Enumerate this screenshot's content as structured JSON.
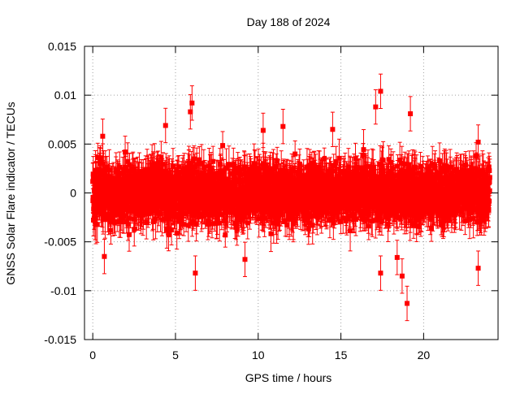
{
  "chart_data": {
    "type": "scatter",
    "title": "Day 188 of 2024",
    "xlabel": "GPS time / hours",
    "ylabel": "GNSS Solar Flare indicator / TECUs",
    "xlim": [
      -0.5,
      24.5
    ],
    "ylim": [
      -0.015,
      0.015
    ],
    "x_ticks": [
      0,
      5,
      10,
      15,
      20
    ],
    "x_tick_labels": [
      "0",
      "5",
      "10",
      "15",
      "20"
    ],
    "y_ticks": [
      -0.015,
      -0.01,
      -0.005,
      0,
      0.005,
      0.01,
      0.015
    ],
    "y_tick_labels": [
      "-0.015",
      "-0.01",
      "-0.005",
      "0",
      "0.005",
      "0.01",
      "0.015"
    ],
    "grid": true,
    "legend": "none",
    "series": [
      {
        "color": "#ff0000",
        "marker": "square",
        "error_bars": true,
        "x_range": [
          0,
          24
        ],
        "n_points": 2880,
        "typical_spread": 0.003,
        "typical_error": 0.0016,
        "notable_points": [
          {
            "x": 0.6,
            "y": 0.0058
          },
          {
            "x": 0.7,
            "y": -0.0065
          },
          {
            "x": 4.4,
            "y": 0.0069
          },
          {
            "x": 5.9,
            "y": 0.0083
          },
          {
            "x": 6.0,
            "y": 0.0092
          },
          {
            "x": 6.2,
            "y": -0.0082
          },
          {
            "x": 9.2,
            "y": -0.0068
          },
          {
            "x": 10.3,
            "y": 0.0064
          },
          {
            "x": 11.5,
            "y": 0.0068
          },
          {
            "x": 14.5,
            "y": 0.0065
          },
          {
            "x": 17.1,
            "y": 0.0088
          },
          {
            "x": 17.4,
            "y": 0.0104
          },
          {
            "x": 17.4,
            "y": -0.0082
          },
          {
            "x": 18.4,
            "y": -0.0066
          },
          {
            "x": 18.7,
            "y": -0.0085
          },
          {
            "x": 19.0,
            "y": -0.0113
          },
          {
            "x": 19.2,
            "y": 0.0081
          },
          {
            "x": 23.3,
            "y": 0.0052
          },
          {
            "x": 23.3,
            "y": -0.0077
          }
        ]
      }
    ]
  }
}
